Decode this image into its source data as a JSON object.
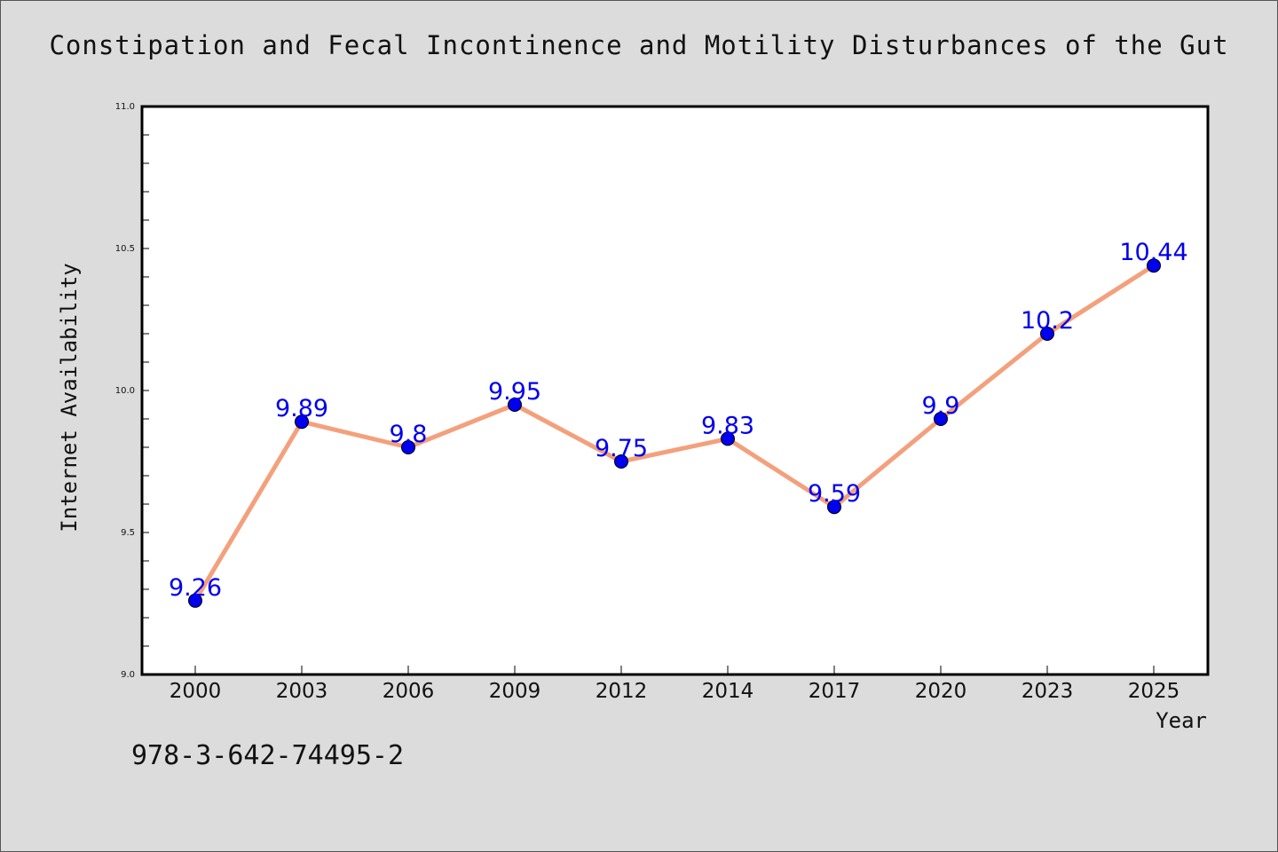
{
  "chart_data": {
    "type": "line",
    "title": "Constipation and Fecal Incontinence and Motility Disturbances of the Gut",
    "xlabel": "Year",
    "ylabel": "Internet Availability",
    "categories": [
      "2000",
      "2003",
      "2006",
      "2009",
      "2012",
      "2014",
      "2017",
      "2020",
      "2023",
      "2025"
    ],
    "values": [
      9.26,
      9.89,
      9.8,
      9.95,
      9.75,
      9.83,
      9.59,
      9.9,
      10.2,
      10.44
    ],
    "data_labels": [
      "9.26",
      "9.89",
      "9.8",
      "9.95",
      "9.75",
      "9.83",
      "9.59",
      "9.9",
      "10.2",
      "10.44"
    ],
    "ylim": [
      9.0,
      11.0
    ],
    "yticks": [
      "9.0",
      "9.5",
      "10.0",
      "10.5",
      "11.0"
    ],
    "grid": false,
    "legend": "none",
    "colors": {
      "line": "#f4a07c",
      "marker": "#0000ee",
      "label": "#0000ee",
      "background": "#dcdcdc",
      "plot_background": "#ffffff"
    }
  },
  "footer": {
    "isbn": "978-3-642-74495-2"
  }
}
